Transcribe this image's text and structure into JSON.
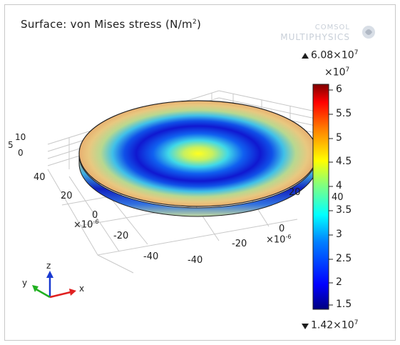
{
  "plot": {
    "title": "Surface: von Mises stress (N/m",
    "title_sup": "2",
    "title_end": ")",
    "logo_line1": "COMSOL",
    "logo_line2": "MULTIPHYSICS"
  },
  "colorbar": {
    "max_label": "6.08",
    "max_base": "×10",
    "max_exp": "7",
    "min_label": "1.42",
    "min_base": "×10",
    "min_exp": "7",
    "scale_base": "×10",
    "scale_exp": "7",
    "ticks": [
      "6",
      "5.5",
      "5",
      "4.5",
      "4",
      "3.5",
      "3",
      "2.5",
      "2",
      "1.5"
    ],
    "tick_values": [
      6,
      5.5,
      5,
      4.5,
      4,
      3.5,
      3,
      2.5,
      2,
      1.5
    ],
    "range": [
      1.42,
      6.08
    ],
    "colormap": [
      "#00007f",
      "#0000ff",
      "#0080ff",
      "#00ffff",
      "#80ff80",
      "#ffff00",
      "#ff8000",
      "#ff0000",
      "#7f0000"
    ]
  },
  "axes": {
    "y_ticks": [
      "40",
      "20",
      "0",
      "-20",
      "-40"
    ],
    "y_scale": "×10",
    "y_scale_exp": "-6",
    "x_ticks": [
      "-40",
      "-20",
      "0",
      "20",
      "40"
    ],
    "x_scale": "×10",
    "x_scale_exp": "-6",
    "z_ticks": [
      "10",
      "5",
      "0"
    ]
  },
  "triad": {
    "x": "x",
    "y": "y",
    "z": "z"
  }
}
